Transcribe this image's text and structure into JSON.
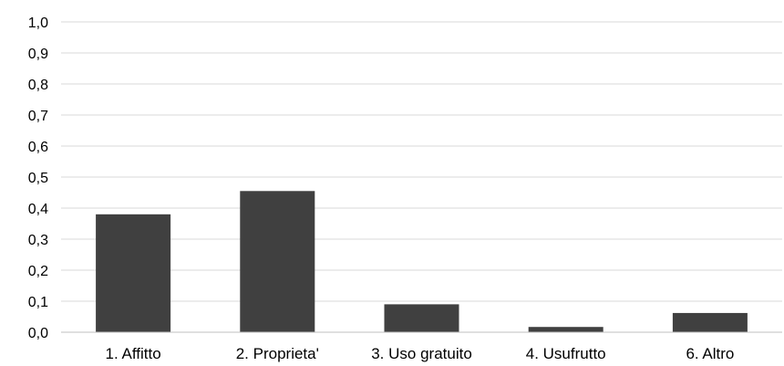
{
  "chart_data": {
    "type": "bar",
    "categories": [
      "1. Affitto",
      "2. Proprieta'",
      "3. Uso gratuito",
      "4. Usufrutto",
      "6. Altro"
    ],
    "values": [
      0.38,
      0.455,
      0.09,
      0.017,
      0.062
    ],
    "ylim": [
      0,
      1.0
    ],
    "yticks": [
      "0,0",
      "0,1",
      "0,2",
      "0,3",
      "0,4",
      "0,5",
      "0,6",
      "0,7",
      "0,8",
      "0,9",
      "1,0"
    ],
    "grid": true,
    "legend": "none",
    "bar_color": "#404040"
  }
}
